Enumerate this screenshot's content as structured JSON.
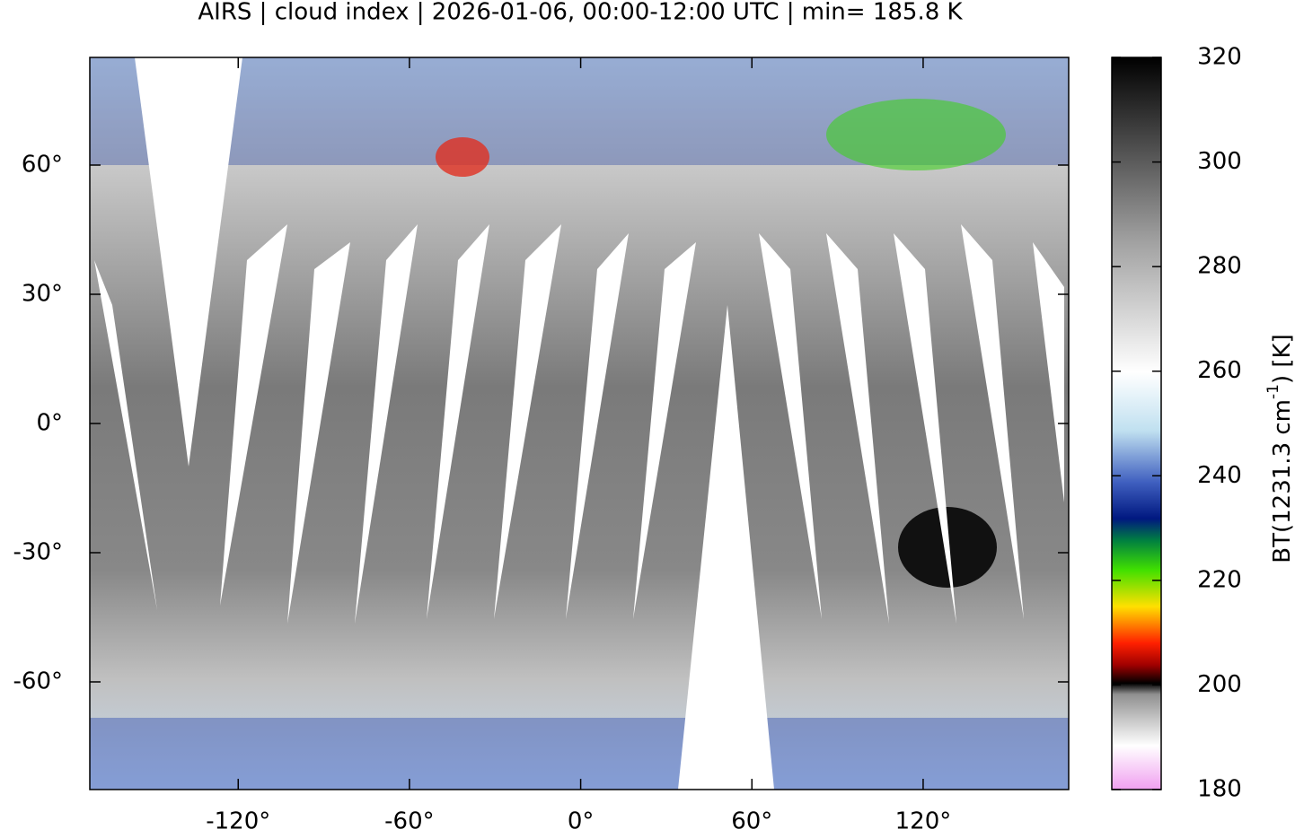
{
  "title": "AIRS | cloud index | 2026-01-06, 00:00-12:00 UTC | min= 185.8 K",
  "map": {
    "xlim": [
      -172,
      171
    ],
    "ylim": [
      -85,
      85
    ],
    "xticks": [
      {
        "value": -120,
        "label": "-120°"
      },
      {
        "value": -60,
        "label": "-60°"
      },
      {
        "value": 0,
        "label": "0°"
      },
      {
        "value": 60,
        "label": "60°"
      },
      {
        "value": 120,
        "label": "120°"
      }
    ],
    "yticks": [
      {
        "value": 60,
        "label": "60°"
      },
      {
        "value": 30,
        "label": "30°"
      },
      {
        "value": 0,
        "label": "0°"
      },
      {
        "value": -30,
        "label": "-30°"
      },
      {
        "value": -60,
        "label": "-60°"
      }
    ]
  },
  "colorbar": {
    "lim": [
      180,
      320
    ],
    "ticks": [
      180,
      200,
      220,
      240,
      260,
      280,
      300,
      320
    ],
    "label": {
      "main": "BT(1231.3 cm",
      "sup": "-1",
      "unit": ") [K]"
    }
  }
}
